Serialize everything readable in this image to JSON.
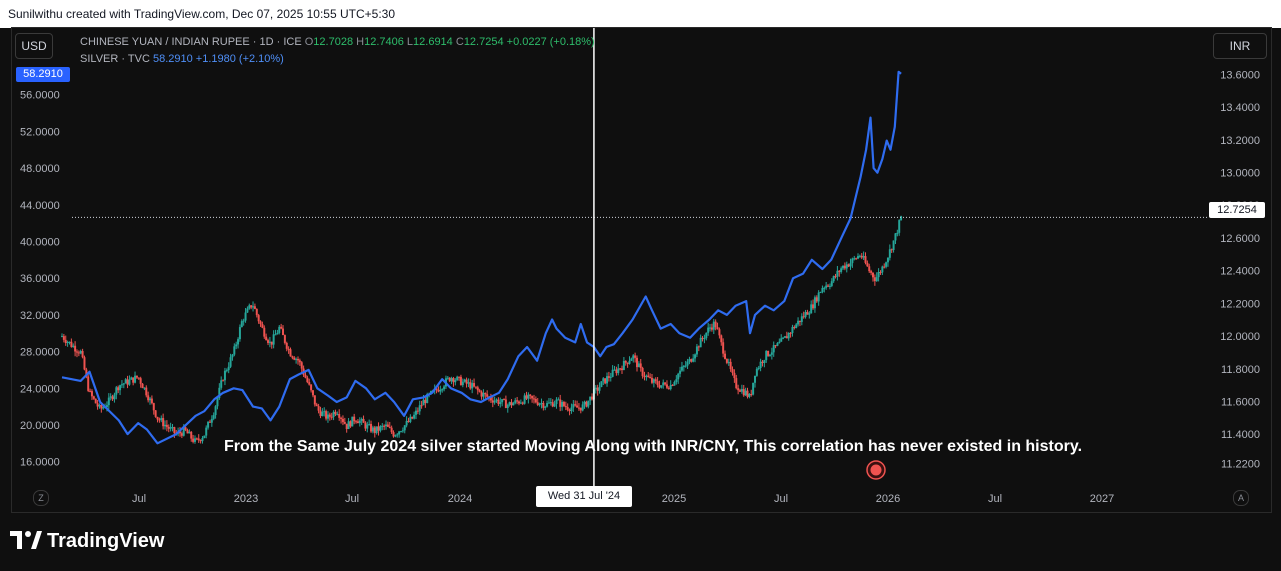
{
  "header": {
    "text": "Sunilwithu created with TradingView.com, Dec 07, 2025 10:55 UTC+5:30"
  },
  "units": {
    "left": "USD",
    "right": "INR"
  },
  "legend": {
    "series1": {
      "name": "CHINESE YUAN / INDIAN RUPEE · 1D · ICE",
      "o_label": "O",
      "o": "12.7028",
      "h_label": "H",
      "h": "12.7406",
      "l_label": "L",
      "l": "12.6914",
      "c_label": "C",
      "c": "12.7254",
      "change": "+0.0227 (+0.18%)"
    },
    "series2": {
      "name": "SILVER · TVC",
      "value": "58.2910",
      "change": "+1.1980 (+2.10%)"
    }
  },
  "badges": {
    "silver_last": "58.2910",
    "inr_last": "12.7254"
  },
  "crosshair_label": "Wed 31 Jul '24",
  "annotation": "From the Same July 2024 silver started Moving Along with INR/CNY, This correlation has never existed in history.",
  "buttons": {
    "zoom": "Z",
    "auto": "A"
  },
  "footer": {
    "brand": "TradingView"
  },
  "colors": {
    "silver_line": "#2f6cf0",
    "up_candle": "#26a69a",
    "down_candle": "#ef5350",
    "background": "#0f0f0f"
  },
  "chart_data": {
    "type": "line",
    "x_ticks": [
      "Jul",
      "2023",
      "Jul",
      "2024",
      "2025",
      "Jul",
      "2026",
      "Jul",
      "2027"
    ],
    "left_axis": {
      "unit": "USD",
      "ticks": [
        "56.0000",
        "52.0000",
        "48.0000",
        "44.0000",
        "40.0000",
        "36.0000",
        "32.0000",
        "28.0000",
        "24.0000",
        "20.0000",
        "16.0000"
      ],
      "ylim": [
        14,
        60
      ]
    },
    "right_axis": {
      "unit": "INR",
      "ticks": [
        "13.6000",
        "13.4000",
        "13.2000",
        "13.0000",
        "12.8000",
        "12.6000",
        "12.4000",
        "12.2000",
        "12.0000",
        "11.8000",
        "11.6000",
        "11.4000",
        "11.2200"
      ],
      "ylim": [
        11.12,
        13.7
      ]
    },
    "x_range": [
      "2022-04-01",
      "2027-04-01"
    ],
    "crosshair_date": "2024-07-31",
    "series": [
      {
        "name": "SILVER · TVC",
        "axis": "left",
        "style": "line",
        "points": [
          [
            "2022-04-01",
            25.2
          ],
          [
            "2022-05-01",
            24.8
          ],
          [
            "2022-05-15",
            25.8
          ],
          [
            "2022-06-01",
            22.5
          ],
          [
            "2022-07-01",
            20.5
          ],
          [
            "2022-07-15",
            19.0
          ],
          [
            "2022-08-01",
            20.2
          ],
          [
            "2022-08-15",
            19.5
          ],
          [
            "2022-09-01",
            18.0
          ],
          [
            "2022-10-01",
            19.0
          ],
          [
            "2022-11-01",
            21.0
          ],
          [
            "2022-11-15",
            21.5
          ],
          [
            "2022-12-01",
            22.8
          ],
          [
            "2022-12-15",
            23.5
          ],
          [
            "2023-01-01",
            24.0
          ],
          [
            "2023-01-15",
            23.8
          ],
          [
            "2023-02-01",
            22.0
          ],
          [
            "2023-02-15",
            21.8
          ],
          [
            "2023-03-01",
            20.5
          ],
          [
            "2023-03-15",
            22.0
          ],
          [
            "2023-04-01",
            25.0
          ],
          [
            "2023-04-15",
            25.5
          ],
          [
            "2023-05-01",
            26.0
          ],
          [
            "2023-05-15",
            24.0
          ],
          [
            "2023-06-01",
            23.2
          ],
          [
            "2023-06-15",
            22.5
          ],
          [
            "2023-07-01",
            23.0
          ],
          [
            "2023-07-15",
            24.8
          ],
          [
            "2023-08-01",
            24.0
          ],
          [
            "2023-08-15",
            22.8
          ],
          [
            "2023-09-01",
            23.5
          ],
          [
            "2023-09-15",
            22.5
          ],
          [
            "2023-10-01",
            21.0
          ],
          [
            "2023-10-15",
            22.8
          ],
          [
            "2023-11-01",
            23.0
          ],
          [
            "2023-11-15",
            23.5
          ],
          [
            "2023-12-01",
            25.0
          ],
          [
            "2023-12-15",
            24.0
          ],
          [
            "2024-01-01",
            23.5
          ],
          [
            "2024-01-15",
            22.8
          ],
          [
            "2024-02-01",
            22.5
          ],
          [
            "2024-02-15",
            23.0
          ],
          [
            "2024-03-01",
            23.5
          ],
          [
            "2024-03-15",
            25.0
          ],
          [
            "2024-04-01",
            27.5
          ],
          [
            "2024-04-15",
            28.5
          ],
          [
            "2024-05-01",
            27.0
          ],
          [
            "2024-05-15",
            30.0
          ],
          [
            "2024-05-25",
            31.5
          ],
          [
            "2024-06-01",
            30.5
          ],
          [
            "2024-06-15",
            29.5
          ],
          [
            "2024-07-01",
            29.0
          ],
          [
            "2024-07-10",
            31.0
          ],
          [
            "2024-07-20",
            29.0
          ],
          [
            "2024-07-31",
            28.5
          ],
          [
            "2024-08-10",
            27.5
          ],
          [
            "2024-08-20",
            28.5
          ],
          [
            "2024-09-01",
            28.8
          ],
          [
            "2024-09-15",
            30.0
          ],
          [
            "2024-10-01",
            31.5
          ],
          [
            "2024-10-22",
            34.0
          ],
          [
            "2024-11-01",
            32.5
          ],
          [
            "2024-11-15",
            30.5
          ],
          [
            "2024-12-01",
            31.0
          ],
          [
            "2024-12-15",
            30.0
          ],
          [
            "2025-01-01",
            29.5
          ],
          [
            "2025-01-15",
            30.5
          ],
          [
            "2025-02-01",
            31.5
          ],
          [
            "2025-02-15",
            32.5
          ],
          [
            "2025-03-01",
            32.0
          ],
          [
            "2025-03-15",
            33.0
          ],
          [
            "2025-04-01",
            33.5
          ],
          [
            "2025-04-07",
            30.0
          ],
          [
            "2025-04-15",
            32.0
          ],
          [
            "2025-05-01",
            33.0
          ],
          [
            "2025-05-15",
            32.5
          ],
          [
            "2025-06-01",
            33.5
          ],
          [
            "2025-06-15",
            36.0
          ],
          [
            "2025-07-01",
            36.5
          ],
          [
            "2025-07-15",
            38.0
          ],
          [
            "2025-08-01",
            37.0
          ],
          [
            "2025-08-15",
            38.0
          ],
          [
            "2025-09-01",
            40.5
          ],
          [
            "2025-09-15",
            42.5
          ],
          [
            "2025-10-01",
            47.0
          ],
          [
            "2025-10-10",
            50.0
          ],
          [
            "2025-10-17",
            53.5
          ],
          [
            "2025-10-22",
            48.0
          ],
          [
            "2025-10-28",
            47.5
          ],
          [
            "2025-11-05",
            49.0
          ],
          [
            "2025-11-12",
            51.0
          ],
          [
            "2025-11-18",
            50.0
          ],
          [
            "2025-11-25",
            52.5
          ],
          [
            "2025-12-01",
            58.5
          ],
          [
            "2025-12-05",
            58.29
          ]
        ]
      },
      {
        "name": "CHINESE YUAN / INDIAN RUPEE · 1D · ICE",
        "axis": "right",
        "style": "candles",
        "points": [
          [
            "2022-04-01",
            12.0
          ],
          [
            "2022-04-15",
            11.95
          ],
          [
            "2022-05-01",
            11.9
          ],
          [
            "2022-05-15",
            11.65
          ],
          [
            "2022-06-01",
            11.55
          ],
          [
            "2022-06-15",
            11.6
          ],
          [
            "2022-07-01",
            11.7
          ],
          [
            "2022-07-15",
            11.72
          ],
          [
            "2022-08-01",
            11.75
          ],
          [
            "2022-08-15",
            11.65
          ],
          [
            "2022-09-01",
            11.5
          ],
          [
            "2022-09-15",
            11.45
          ],
          [
            "2022-10-01",
            11.4
          ],
          [
            "2022-10-15",
            11.42
          ],
          [
            "2022-11-01",
            11.35
          ],
          [
            "2022-11-15",
            11.4
          ],
          [
            "2022-12-01",
            11.55
          ],
          [
            "2022-12-15",
            11.75
          ],
          [
            "2023-01-01",
            11.9
          ],
          [
            "2023-01-15",
            12.1
          ],
          [
            "2023-01-31",
            12.2
          ],
          [
            "2023-02-15",
            12.05
          ],
          [
            "2023-03-01",
            11.95
          ],
          [
            "2023-03-15",
            12.05
          ],
          [
            "2023-04-01",
            11.9
          ],
          [
            "2023-04-15",
            11.85
          ],
          [
            "2023-05-01",
            11.7
          ],
          [
            "2023-05-15",
            11.55
          ],
          [
            "2023-06-01",
            11.5
          ],
          [
            "2023-06-15",
            11.55
          ],
          [
            "2023-07-01",
            11.45
          ],
          [
            "2023-07-15",
            11.5
          ],
          [
            "2023-08-01",
            11.45
          ],
          [
            "2023-08-15",
            11.42
          ],
          [
            "2023-09-01",
            11.45
          ],
          [
            "2023-09-15",
            11.4
          ],
          [
            "2023-10-01",
            11.45
          ],
          [
            "2023-10-15",
            11.5
          ],
          [
            "2023-11-01",
            11.6
          ],
          [
            "2023-11-15",
            11.65
          ],
          [
            "2023-12-01",
            11.7
          ],
          [
            "2023-12-15",
            11.75
          ],
          [
            "2024-01-01",
            11.72
          ],
          [
            "2024-01-15",
            11.7
          ],
          [
            "2024-02-01",
            11.65
          ],
          [
            "2024-02-15",
            11.62
          ],
          [
            "2024-03-01",
            11.6
          ],
          [
            "2024-03-15",
            11.58
          ],
          [
            "2024-04-01",
            11.6
          ],
          [
            "2024-04-15",
            11.62
          ],
          [
            "2024-05-01",
            11.6
          ],
          [
            "2024-05-15",
            11.58
          ],
          [
            "2024-06-01",
            11.6
          ],
          [
            "2024-06-15",
            11.57
          ],
          [
            "2024-07-01",
            11.56
          ],
          [
            "2024-07-15",
            11.57
          ],
          [
            "2024-07-31",
            11.65
          ],
          [
            "2024-08-15",
            11.72
          ],
          [
            "2024-09-01",
            11.78
          ],
          [
            "2024-09-15",
            11.82
          ],
          [
            "2024-10-01",
            11.88
          ],
          [
            "2024-10-15",
            11.78
          ],
          [
            "2024-11-01",
            11.72
          ],
          [
            "2024-11-15",
            11.7
          ],
          [
            "2024-12-01",
            11.7
          ],
          [
            "2024-12-15",
            11.78
          ],
          [
            "2025-01-01",
            11.85
          ],
          [
            "2025-01-15",
            11.95
          ],
          [
            "2025-02-01",
            12.05
          ],
          [
            "2025-02-10",
            12.08
          ],
          [
            "2025-02-20",
            11.95
          ],
          [
            "2025-03-01",
            11.85
          ],
          [
            "2025-03-15",
            11.7
          ],
          [
            "2025-04-01",
            11.65
          ],
          [
            "2025-04-07",
            11.62
          ],
          [
            "2025-04-15",
            11.78
          ],
          [
            "2025-05-01",
            11.88
          ],
          [
            "2025-05-15",
            11.92
          ],
          [
            "2025-06-01",
            11.98
          ],
          [
            "2025-06-15",
            12.05
          ],
          [
            "2025-07-01",
            12.12
          ],
          [
            "2025-07-15",
            12.18
          ],
          [
            "2025-08-01",
            12.3
          ],
          [
            "2025-08-15",
            12.33
          ],
          [
            "2025-09-01",
            12.42
          ],
          [
            "2025-09-15",
            12.45
          ],
          [
            "2025-10-01",
            12.5
          ],
          [
            "2025-10-15",
            12.4
          ],
          [
            "2025-10-25",
            12.35
          ],
          [
            "2025-11-05",
            12.42
          ],
          [
            "2025-11-15",
            12.5
          ],
          [
            "2025-11-25",
            12.6
          ],
          [
            "2025-12-05",
            12.7254
          ]
        ]
      }
    ],
    "price_line": {
      "axis": "right",
      "value": 12.7254
    }
  }
}
